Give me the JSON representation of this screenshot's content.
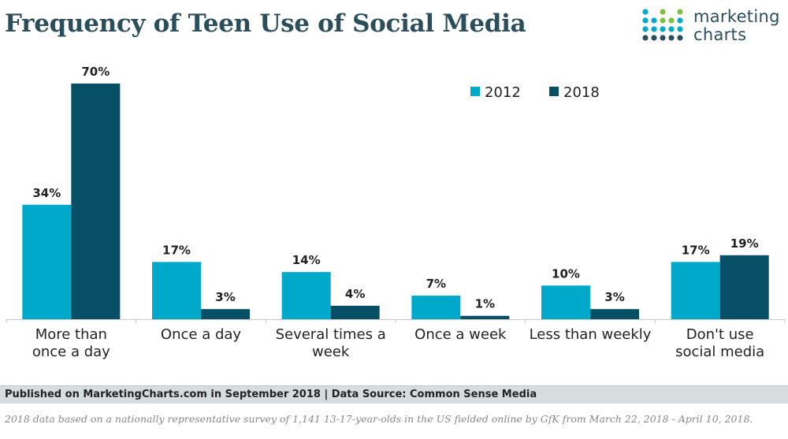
{
  "header": {
    "title": "Frequency of Teen Use of Social Media",
    "logo_line1": "marketing",
    "logo_line2": "charts"
  },
  "footer": {
    "source": "Published on MarketingCharts.com in September 2018 | Data Source: Common Sense Media",
    "note": "2018 data based on a nationally representative survey of 1,141 13-17-year-olds in the US fielded online by GfK from March 22, 2018 - April 10, 2018."
  },
  "colors": {
    "series_2012": "#00a9c9",
    "series_2018": "#064f66",
    "title": "#2c4e5b",
    "logo_dots": [
      "#00a9c9",
      "#7fc241",
      "#2c4e5b"
    ]
  },
  "chart_data": {
    "type": "bar",
    "title": "Frequency of Teen Use of Social Media",
    "categories": [
      [
        "More than",
        "once a day"
      ],
      [
        "Once a day"
      ],
      [
        "Several times a",
        "week"
      ],
      [
        "Once a week"
      ],
      [
        "Less than weekly"
      ],
      [
        "Don't use",
        "social media"
      ]
    ],
    "series": [
      {
        "name": "2012",
        "values": [
          34,
          17,
          14,
          7,
          10,
          17
        ],
        "labels": [
          "34%",
          "17%",
          "14%",
          "7%",
          "10%",
          "17%"
        ]
      },
      {
        "name": "2018",
        "values": [
          70,
          3,
          4,
          1,
          3,
          19
        ],
        "labels": [
          "70%",
          "3%",
          "4%",
          "1%",
          "3%",
          "19%"
        ]
      }
    ],
    "ylim": [
      0,
      70
    ],
    "xlabel": "",
    "ylabel": "",
    "grid": false,
    "legend": "top-right"
  }
}
